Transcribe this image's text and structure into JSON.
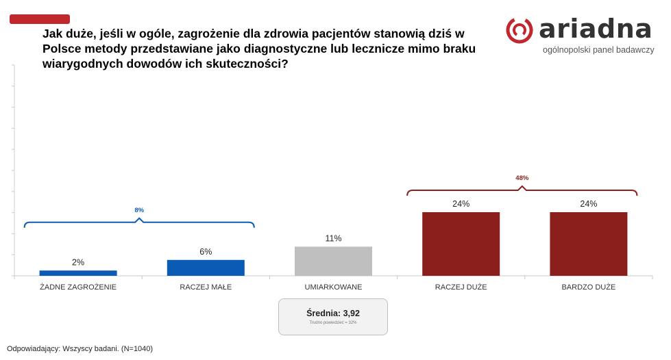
{
  "title": "Jak duże, jeśli w ogóle, zagrożenie dla zdrowia pacjentów stanowią dziś w Polsce metody przedstawiane jako diagnostyczne lub lecznicze mimo braku wiarygodnych dowodów ich skuteczności?",
  "logo": {
    "word": "ariadna",
    "tagline": "ogólnopolski panel badawczy"
  },
  "average": {
    "label": "Średnia: 3,92",
    "note": "Trudno powiedzieć = 32%"
  },
  "footer": "Odpowiadający: Wszyscy badani. (N=1040)",
  "colors": {
    "accent": "#c0282d",
    "blue": "#0b5bb5",
    "gray": "#bfbfbf",
    "red": "#8b1f1c"
  },
  "chart_data": {
    "type": "bar",
    "categories": [
      "ŻADNE ZAGROŻENIE",
      "RACZEJ MAŁE",
      "UMIARKOWANE",
      "RACZEJ DUŻE",
      "BARDZO DUŻE"
    ],
    "values": [
      2,
      6,
      11,
      24,
      24
    ],
    "value_labels": [
      "2%",
      "6%",
      "11%",
      "24%",
      "24%"
    ],
    "bar_colors": [
      "#0b5bb5",
      "#0b5bb5",
      "#bfbfbf",
      "#8b1f1c",
      "#8b1f1c"
    ],
    "ylim": [
      0,
      50
    ],
    "grid": false,
    "brackets": [
      {
        "label": "8%",
        "from": 0,
        "to": 1,
        "color": "#0b5bb5"
      },
      {
        "label": "48%",
        "from": 3,
        "to": 4,
        "color": "#8b1f1c"
      }
    ]
  }
}
